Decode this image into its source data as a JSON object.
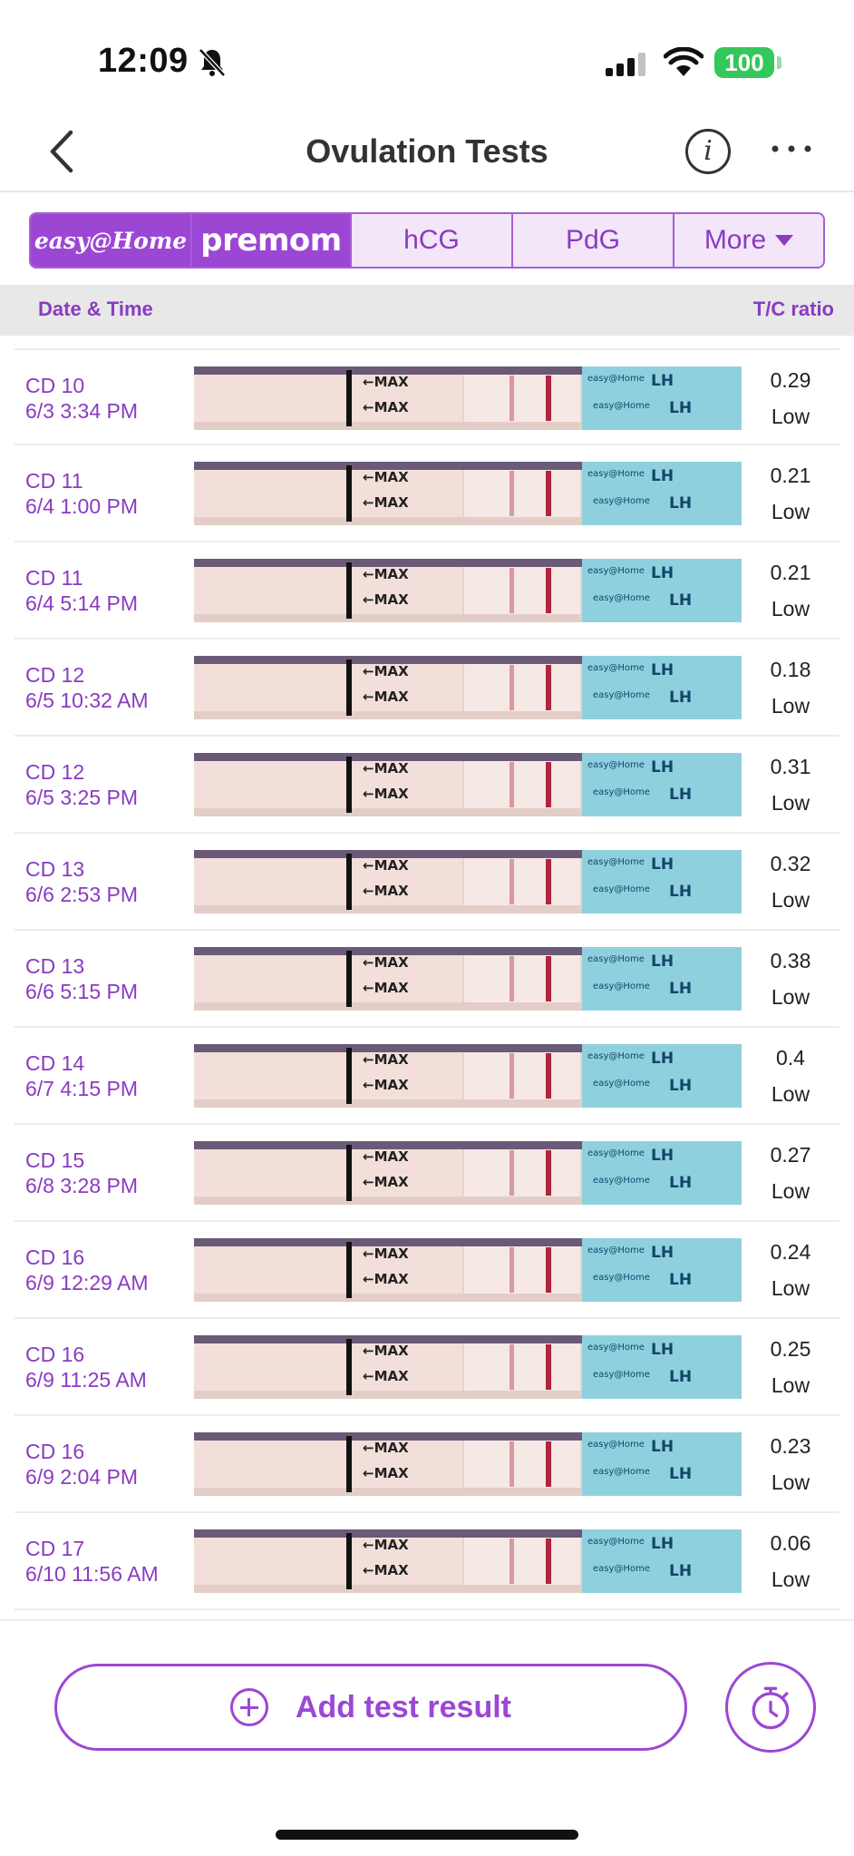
{
  "status_bar": {
    "time": "12:09",
    "battery": "100"
  },
  "nav": {
    "title": "Ovulation Tests",
    "info_glyph": "i"
  },
  "tabs": {
    "brand1_a": "easy@",
    "brand1_b": "Home",
    "brand2": "premom",
    "hcg": "hCG",
    "pdg": "PdG",
    "more": "More"
  },
  "columns": {
    "date": "Date & Time",
    "ratio": "T/C ratio"
  },
  "strip_text": {
    "max": "←MAX",
    "brand": "easy@Home",
    "lh": "LH"
  },
  "rows": [
    {
      "cd": "CD 10",
      "date": "6/3 3:34 PM",
      "ratio": "0.29",
      "level": "Low"
    },
    {
      "cd": "CD 11",
      "date": "6/4 1:00 PM",
      "ratio": "0.21",
      "level": "Low"
    },
    {
      "cd": "CD 11",
      "date": "6/4 5:14 PM",
      "ratio": "0.21",
      "level": "Low"
    },
    {
      "cd": "CD 12",
      "date": "6/5 10:32 AM",
      "ratio": "0.18",
      "level": "Low"
    },
    {
      "cd": "CD 12",
      "date": "6/5 3:25 PM",
      "ratio": "0.31",
      "level": "Low"
    },
    {
      "cd": "CD 13",
      "date": "6/6 2:53 PM",
      "ratio": "0.32",
      "level": "Low"
    },
    {
      "cd": "CD 13",
      "date": "6/6 5:15 PM",
      "ratio": "0.38",
      "level": "Low"
    },
    {
      "cd": "CD 14",
      "date": "6/7 4:15 PM",
      "ratio": "0.4",
      "level": "Low"
    },
    {
      "cd": "CD 15",
      "date": "6/8 3:28 PM",
      "ratio": "0.27",
      "level": "Low"
    },
    {
      "cd": "CD 16",
      "date": "6/9 12:29 AM",
      "ratio": "0.24",
      "level": "Low"
    },
    {
      "cd": "CD 16",
      "date": "6/9 11:25 AM",
      "ratio": "0.25",
      "level": "Low"
    },
    {
      "cd": "CD 16",
      "date": "6/9 2:04 PM",
      "ratio": "0.23",
      "level": "Low"
    },
    {
      "cd": "CD 17",
      "date": "6/10 11:56 AM",
      "ratio": "0.06",
      "level": "Low"
    }
  ],
  "actions": {
    "add_label": "Add test result"
  },
  "colors": {
    "accent": "#9c47d4",
    "text_purple": "#8a3bc2",
    "battery": "#34c759"
  },
  "icons": {
    "bell": "bell-slash-icon",
    "signal": "cellular-signal-icon",
    "wifi": "wifi-icon",
    "back": "chevron-left-icon",
    "info": "info-icon",
    "more": "ellipsis-icon",
    "add": "plus-circle-icon",
    "timer": "stopwatch-icon"
  }
}
